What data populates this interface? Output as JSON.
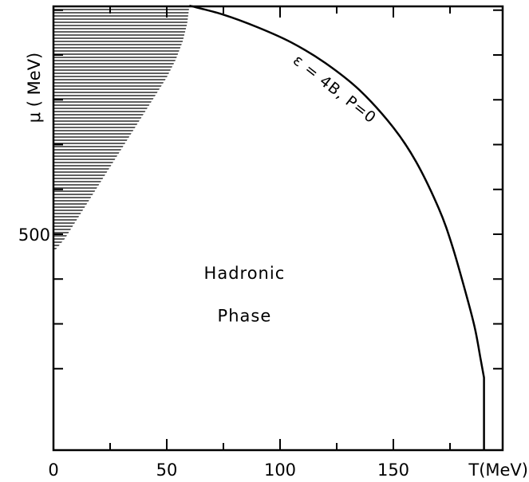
{
  "chart_data": {
    "type": "line",
    "title": "",
    "xlabel": "T(MeV)",
    "ylabel": "μ ( MeV)",
    "xlim": [
      0,
      200
    ],
    "ylim": [
      180,
      1040
    ],
    "x_ticks": [
      0,
      50,
      100,
      150
    ],
    "x_tick_labels": [
      "0",
      "50",
      "100",
      "150"
    ],
    "y_ticks": [
      500
    ],
    "y_tick_labels": [
      "500"
    ],
    "series": [
      {
        "name": "ε = 4B, P=0",
        "x": [
          60,
          75,
          90,
          105,
          120,
          135,
          150,
          160,
          170,
          176,
          182,
          186,
          188.5,
          190
        ],
        "y": [
          1010,
          990,
          962,
          928,
          882,
          822,
          738,
          662,
          558,
          474,
          368,
          290,
          222,
          180
        ]
      }
    ],
    "shaded_region": {
      "x": [
        0,
        60,
        60,
        59,
        57,
        54,
        50,
        45,
        40,
        35,
        30,
        25,
        20,
        15,
        10,
        5,
        0
      ],
      "y": [
        1040,
        1040,
        1010,
        970,
        930,
        890,
        850,
        810,
        770,
        730,
        690,
        650,
        610,
        570,
        530,
        490,
        460
      ]
    },
    "annotations": [
      {
        "text": "Hadronic",
        "x": 60,
        "y": 415
      },
      {
        "text": "Phase",
        "x": 60,
        "y": 320
      }
    ],
    "grid": false
  }
}
